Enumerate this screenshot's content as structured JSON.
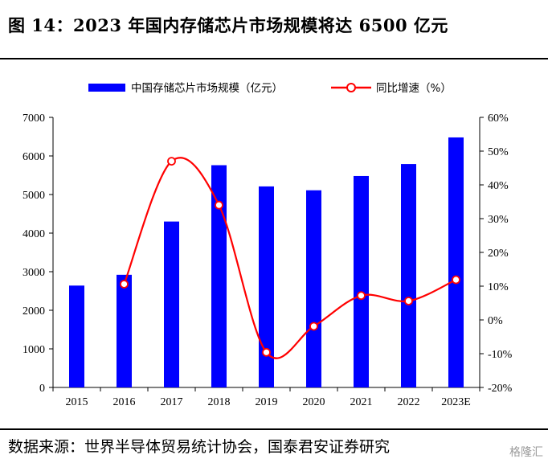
{
  "figure_title": "图 14：2023 年国内存储芯片市场规模将达 6500 亿元",
  "source_note": "数据来源：世界半导体贸易统计协会，国泰君安证券研究",
  "watermark": "格隆汇",
  "colors": {
    "bar": "#0000ff",
    "line": "#ff0000",
    "marker_fill": "#ffffff",
    "axis": "#000000"
  },
  "chart_data": {
    "type": "bar",
    "categories": [
      "2015",
      "2016",
      "2017",
      "2018",
      "2019",
      "2020",
      "2021",
      "2022",
      "2023E"
    ],
    "series": [
      {
        "name": "中国存储芯片市场规模（亿元）",
        "type": "bar",
        "axis": "left",
        "values": [
          2640,
          2920,
          4300,
          5760,
          5210,
          5110,
          5480,
          5790,
          6480
        ]
      },
      {
        "name": "同比增速（%）",
        "type": "line",
        "axis": "right",
        "smooth": true,
        "values": [
          null,
          10.6,
          47.0,
          34.0,
          -9.6,
          -1.9,
          7.2,
          5.6,
          11.9
        ]
      }
    ],
    "left_axis": {
      "ylim": [
        0,
        7000
      ],
      "ticks": [
        "0",
        "1000",
        "2000",
        "3000",
        "4000",
        "5000",
        "6000",
        "7000"
      ]
    },
    "right_axis": {
      "ylim": [
        -20,
        60
      ],
      "ticks": [
        "-20%",
        "-10%",
        "0%",
        "10%",
        "20%",
        "30%",
        "40%",
        "50%",
        "60%"
      ]
    },
    "legend": {
      "position": "top"
    },
    "grid": false
  }
}
